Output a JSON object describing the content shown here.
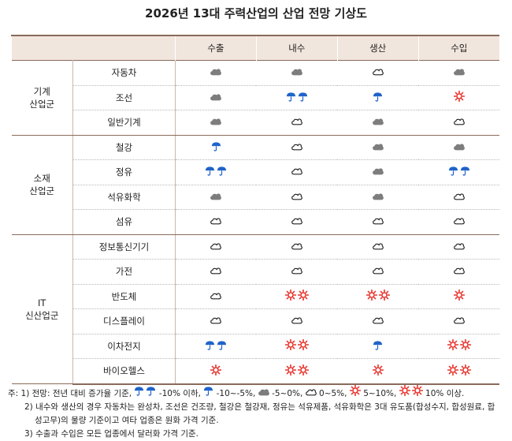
{
  "title": "2026년 13대 주력산업의 산업 전망 기상도",
  "columns": [
    "수출",
    "내수",
    "생산",
    "수입"
  ],
  "groups": [
    {
      "name": "기계\n산업군",
      "rows": [
        {
          "item": "자동차",
          "cells": [
            "gray-cloud",
            "gray-cloud",
            "white-cloud",
            "gray-cloud"
          ]
        },
        {
          "item": "조선",
          "cells": [
            "gray-cloud",
            "two-umbrellas",
            "umbrella",
            "sun"
          ]
        },
        {
          "item": "일반기계",
          "cells": [
            "gray-cloud",
            "white-cloud",
            "gray-cloud",
            "white-cloud"
          ]
        }
      ]
    },
    {
      "name": "소재\n산업군",
      "rows": [
        {
          "item": "철강",
          "cells": [
            "umbrella",
            "white-cloud",
            "gray-cloud",
            "gray-cloud"
          ]
        },
        {
          "item": "정유",
          "cells": [
            "two-umbrellas",
            "white-cloud",
            "gray-cloud",
            "two-umbrellas"
          ]
        },
        {
          "item": "석유화학",
          "cells": [
            "gray-cloud",
            "white-cloud",
            "gray-cloud",
            "white-cloud"
          ]
        },
        {
          "item": "섬유",
          "cells": [
            "white-cloud",
            "white-cloud",
            "white-cloud",
            "white-cloud"
          ]
        }
      ]
    },
    {
      "name": "IT\n신산업군",
      "rows": [
        {
          "item": "정보통신기기",
          "cells": [
            "white-cloud",
            "white-cloud",
            "white-cloud",
            "white-cloud"
          ]
        },
        {
          "item": "가전",
          "cells": [
            "white-cloud",
            "white-cloud",
            "white-cloud",
            "white-cloud"
          ]
        },
        {
          "item": "반도체",
          "cells": [
            "white-cloud",
            "two-suns",
            "two-suns",
            "sun"
          ]
        },
        {
          "item": "디스플레이",
          "cells": [
            "white-cloud",
            "white-cloud",
            "white-cloud",
            "white-cloud"
          ]
        },
        {
          "item": "이차전지",
          "cells": [
            "two-umbrellas",
            "two-suns",
            "umbrella",
            "two-suns"
          ]
        },
        {
          "item": "바이오헬스",
          "cells": [
            "sun",
            "two-suns",
            "sun",
            "two-suns"
          ]
        }
      ]
    }
  ],
  "notes": {
    "n1_prefix": "주: 1) 전망: 전년 대비 증가율 기준,",
    "n1_legend": [
      {
        "icon": "two-umbrellas",
        "text": "-10% 이하,"
      },
      {
        "icon": "umbrella",
        "text": "-10~-5%,"
      },
      {
        "icon": "gray-cloud",
        "text": "-5~0%,"
      },
      {
        "icon": "white-cloud",
        "text": "0~5%,"
      },
      {
        "icon": "sun",
        "text": "5~10%,"
      },
      {
        "icon": "two-suns",
        "text": "10% 이상."
      }
    ],
    "n2_line1": "2) 내수와 생산의 경우 자동차는 완성차, 조선은 건조량, 철강은 철강재, 정유는 석유제품, 석유화학은 3대 유도품(합성수지, 합성원료, 합",
    "n2_line2": "성고무)의 물량 기준이고 여타 업종은 원화 가격 기준.",
    "n3": "3) 수출과 수입은 모든 업종에서 달러화 가격 기준."
  },
  "colors": {
    "umbrella": "#1f63c9",
    "sun": "#e8322b",
    "gray_cloud": "#7d7d7d",
    "header_bg": "#f1e6dd",
    "rule": "#8a6a5a"
  }
}
